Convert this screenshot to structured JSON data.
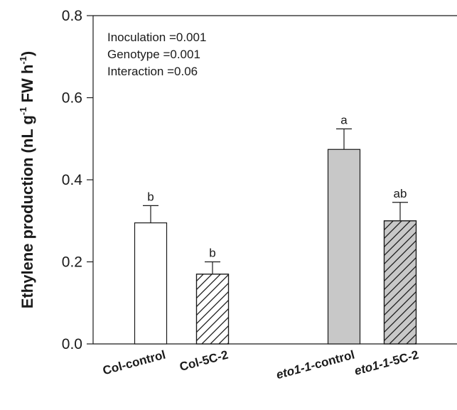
{
  "chart_data": {
    "type": "bar",
    "title": "",
    "xlabel": "",
    "ylabel": {
      "parts": [
        {
          "text": "Ethylene production (nL g",
          "sup": false
        },
        {
          "text": "-1",
          "sup": true
        },
        {
          "text": " FW h",
          "sup": false
        },
        {
          "text": "-1",
          "sup": true
        },
        {
          "text": ")",
          "sup": false
        }
      ]
    },
    "ylim": [
      0,
      0.8
    ],
    "yticks": [
      "0.0",
      "0.2",
      "0.4",
      "0.6",
      "0.8"
    ],
    "ytick_values": [
      0,
      0.2,
      0.4,
      0.6,
      0.8
    ],
    "categories": [
      {
        "parts": [
          {
            "text": "Col-control",
            "italic": false
          }
        ]
      },
      {
        "parts": [
          {
            "text": "Col-5C-2",
            "italic": false
          }
        ]
      },
      {
        "parts": [
          {
            "text": "eto1-1",
            "italic": true
          },
          {
            "text": "-control",
            "italic": false
          }
        ]
      },
      {
        "parts": [
          {
            "text": "eto1-1",
            "italic": true
          },
          {
            "text": "-5C-2",
            "italic": false
          }
        ]
      }
    ],
    "values": [
      0.295,
      0.17,
      0.474,
      0.3
    ],
    "errors": [
      0.042,
      0.03,
      0.05,
      0.045
    ],
    "significance": [
      "b",
      "b",
      "a",
      "ab"
    ],
    "fills": [
      {
        "color": "#ffffff",
        "hatch": false
      },
      {
        "color": "#ffffff",
        "hatch": true
      },
      {
        "color": "#c8c8c8",
        "hatch": false
      },
      {
        "color": "#c8c8c8",
        "hatch": true
      }
    ],
    "stats": [
      "Inoculation =0.001",
      "Genotype =0.001",
      "Interaction =0.06"
    ]
  },
  "colors": {
    "axis": "#1a1a1a",
    "bar_stroke": "#1a1a1a"
  }
}
